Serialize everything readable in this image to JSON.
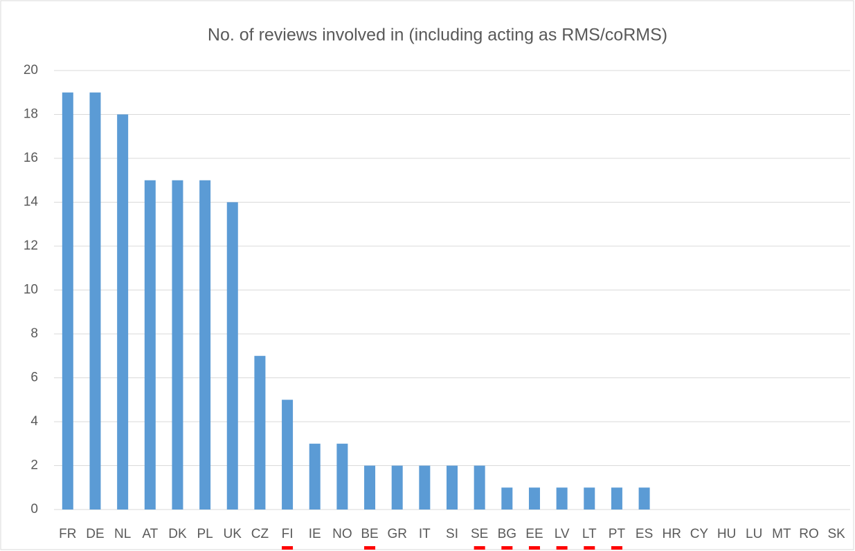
{
  "chart_data": {
    "type": "bar",
    "title": "No. of reviews involved in (including acting as RMS/coRMS)",
    "categories": [
      "FR",
      "DE",
      "NL",
      "AT",
      "DK",
      "PL",
      "UK",
      "CZ",
      "FI",
      "IE",
      "NO",
      "BE",
      "GR",
      "IT",
      "SI",
      "SE",
      "BG",
      "EE",
      "LV",
      "LT",
      "PT",
      "ES",
      "HR",
      "CY",
      "HU",
      "LU",
      "MT",
      "RO",
      "SK"
    ],
    "values": [
      19,
      19,
      18,
      15,
      15,
      15,
      14,
      7,
      5,
      3,
      3,
      2,
      2,
      2,
      2,
      2,
      1,
      1,
      1,
      1,
      1,
      1,
      0,
      0,
      0,
      0,
      0,
      0,
      0
    ],
    "color": "#5b9bd5",
    "ylim": [
      0,
      20
    ],
    "yticks": [
      0,
      2,
      4,
      6,
      8,
      10,
      12,
      14,
      16,
      18,
      20
    ],
    "grid": true,
    "highlighted": [
      "FI",
      "BE",
      "SE",
      "BG",
      "EE",
      "LV",
      "LT",
      "PT"
    ],
    "highlight_color": "#ff0000"
  }
}
